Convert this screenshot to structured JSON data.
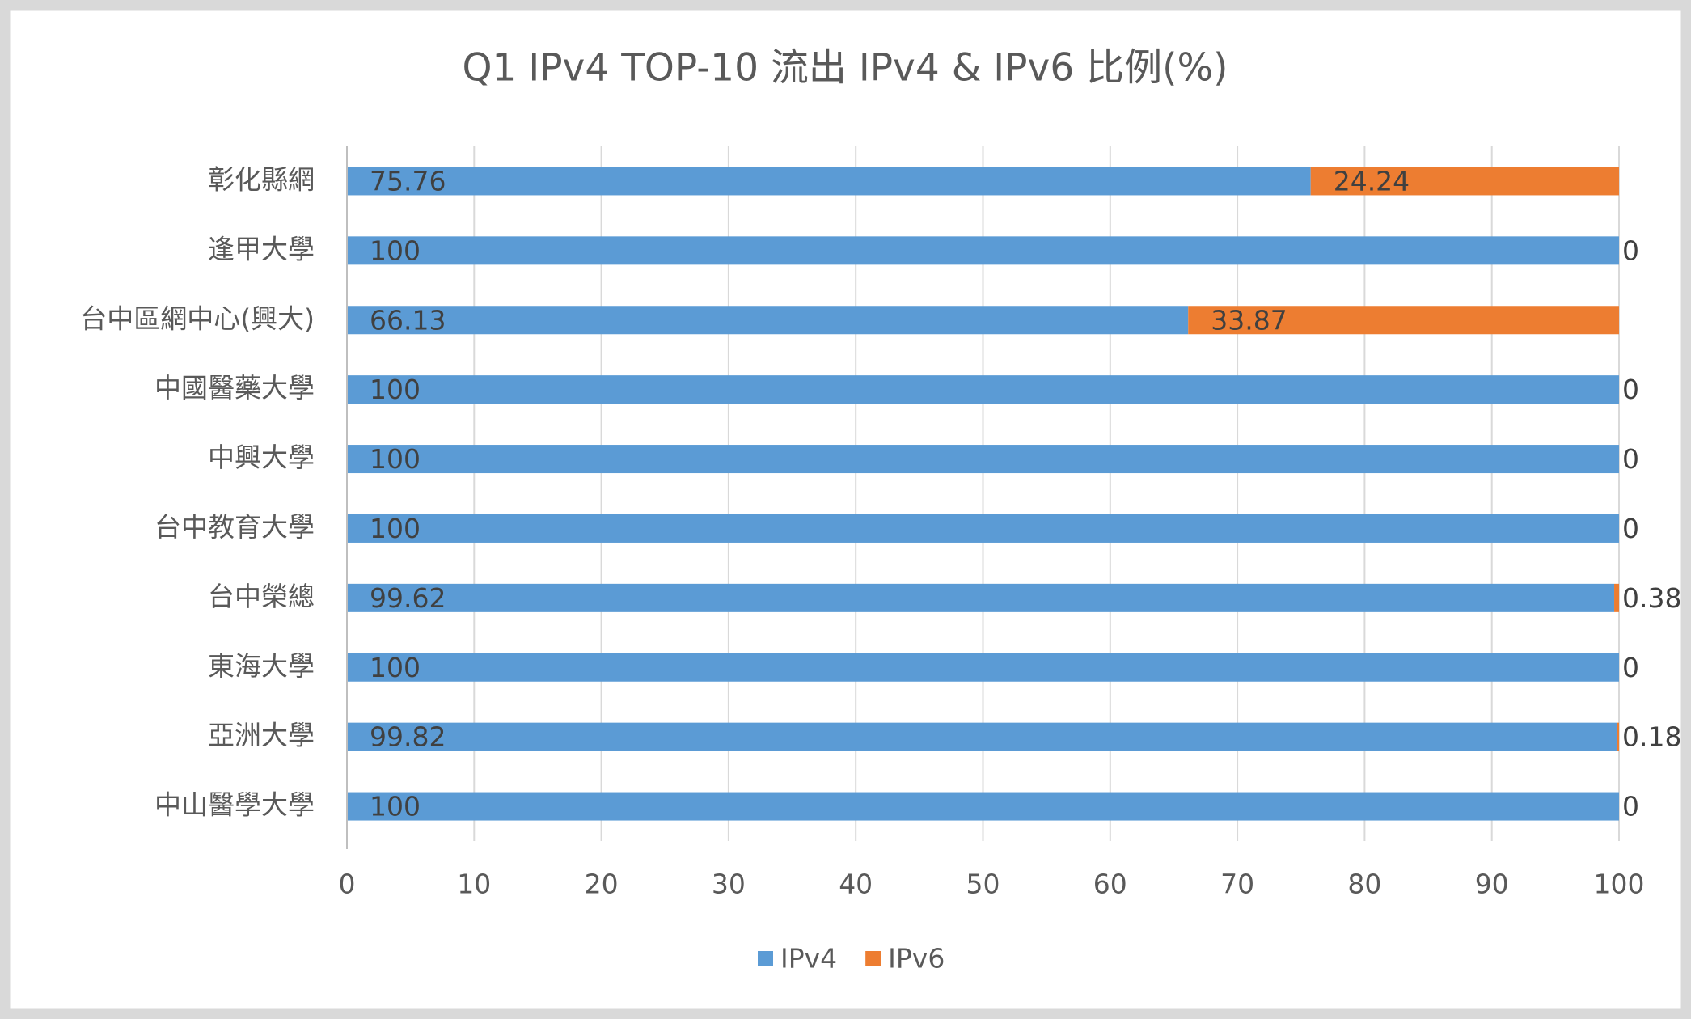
{
  "chart_data": {
    "type": "stacked-bar-horizontal",
    "title": "Q1 IPv4 TOP-10 流出 IPv4 & IPv6 比例(%)",
    "categories": [
      "彰化縣網",
      "逢甲大學",
      "台中區網中心(興大)",
      "中國醫藥大學",
      "中興大學",
      "台中教育大學",
      "台中榮總",
      "東海大學",
      "亞洲大學",
      "中山醫學大學"
    ],
    "series": [
      {
        "name": "IPv4",
        "color": "#5b9bd5",
        "values": [
          75.76,
          100,
          66.13,
          100,
          100,
          100,
          99.62,
          100,
          99.82,
          100
        ]
      },
      {
        "name": "IPv6",
        "color": "#ed7d31",
        "values": [
          24.24,
          0,
          33.87,
          0,
          0,
          0,
          0.38,
          0,
          0.18,
          0
        ]
      }
    ],
    "xlim": [
      0,
      100
    ],
    "xticks": [
      0,
      10,
      20,
      30,
      40,
      50,
      60,
      70,
      80,
      90,
      100
    ],
    "grid": true,
    "legend": "bottom"
  }
}
